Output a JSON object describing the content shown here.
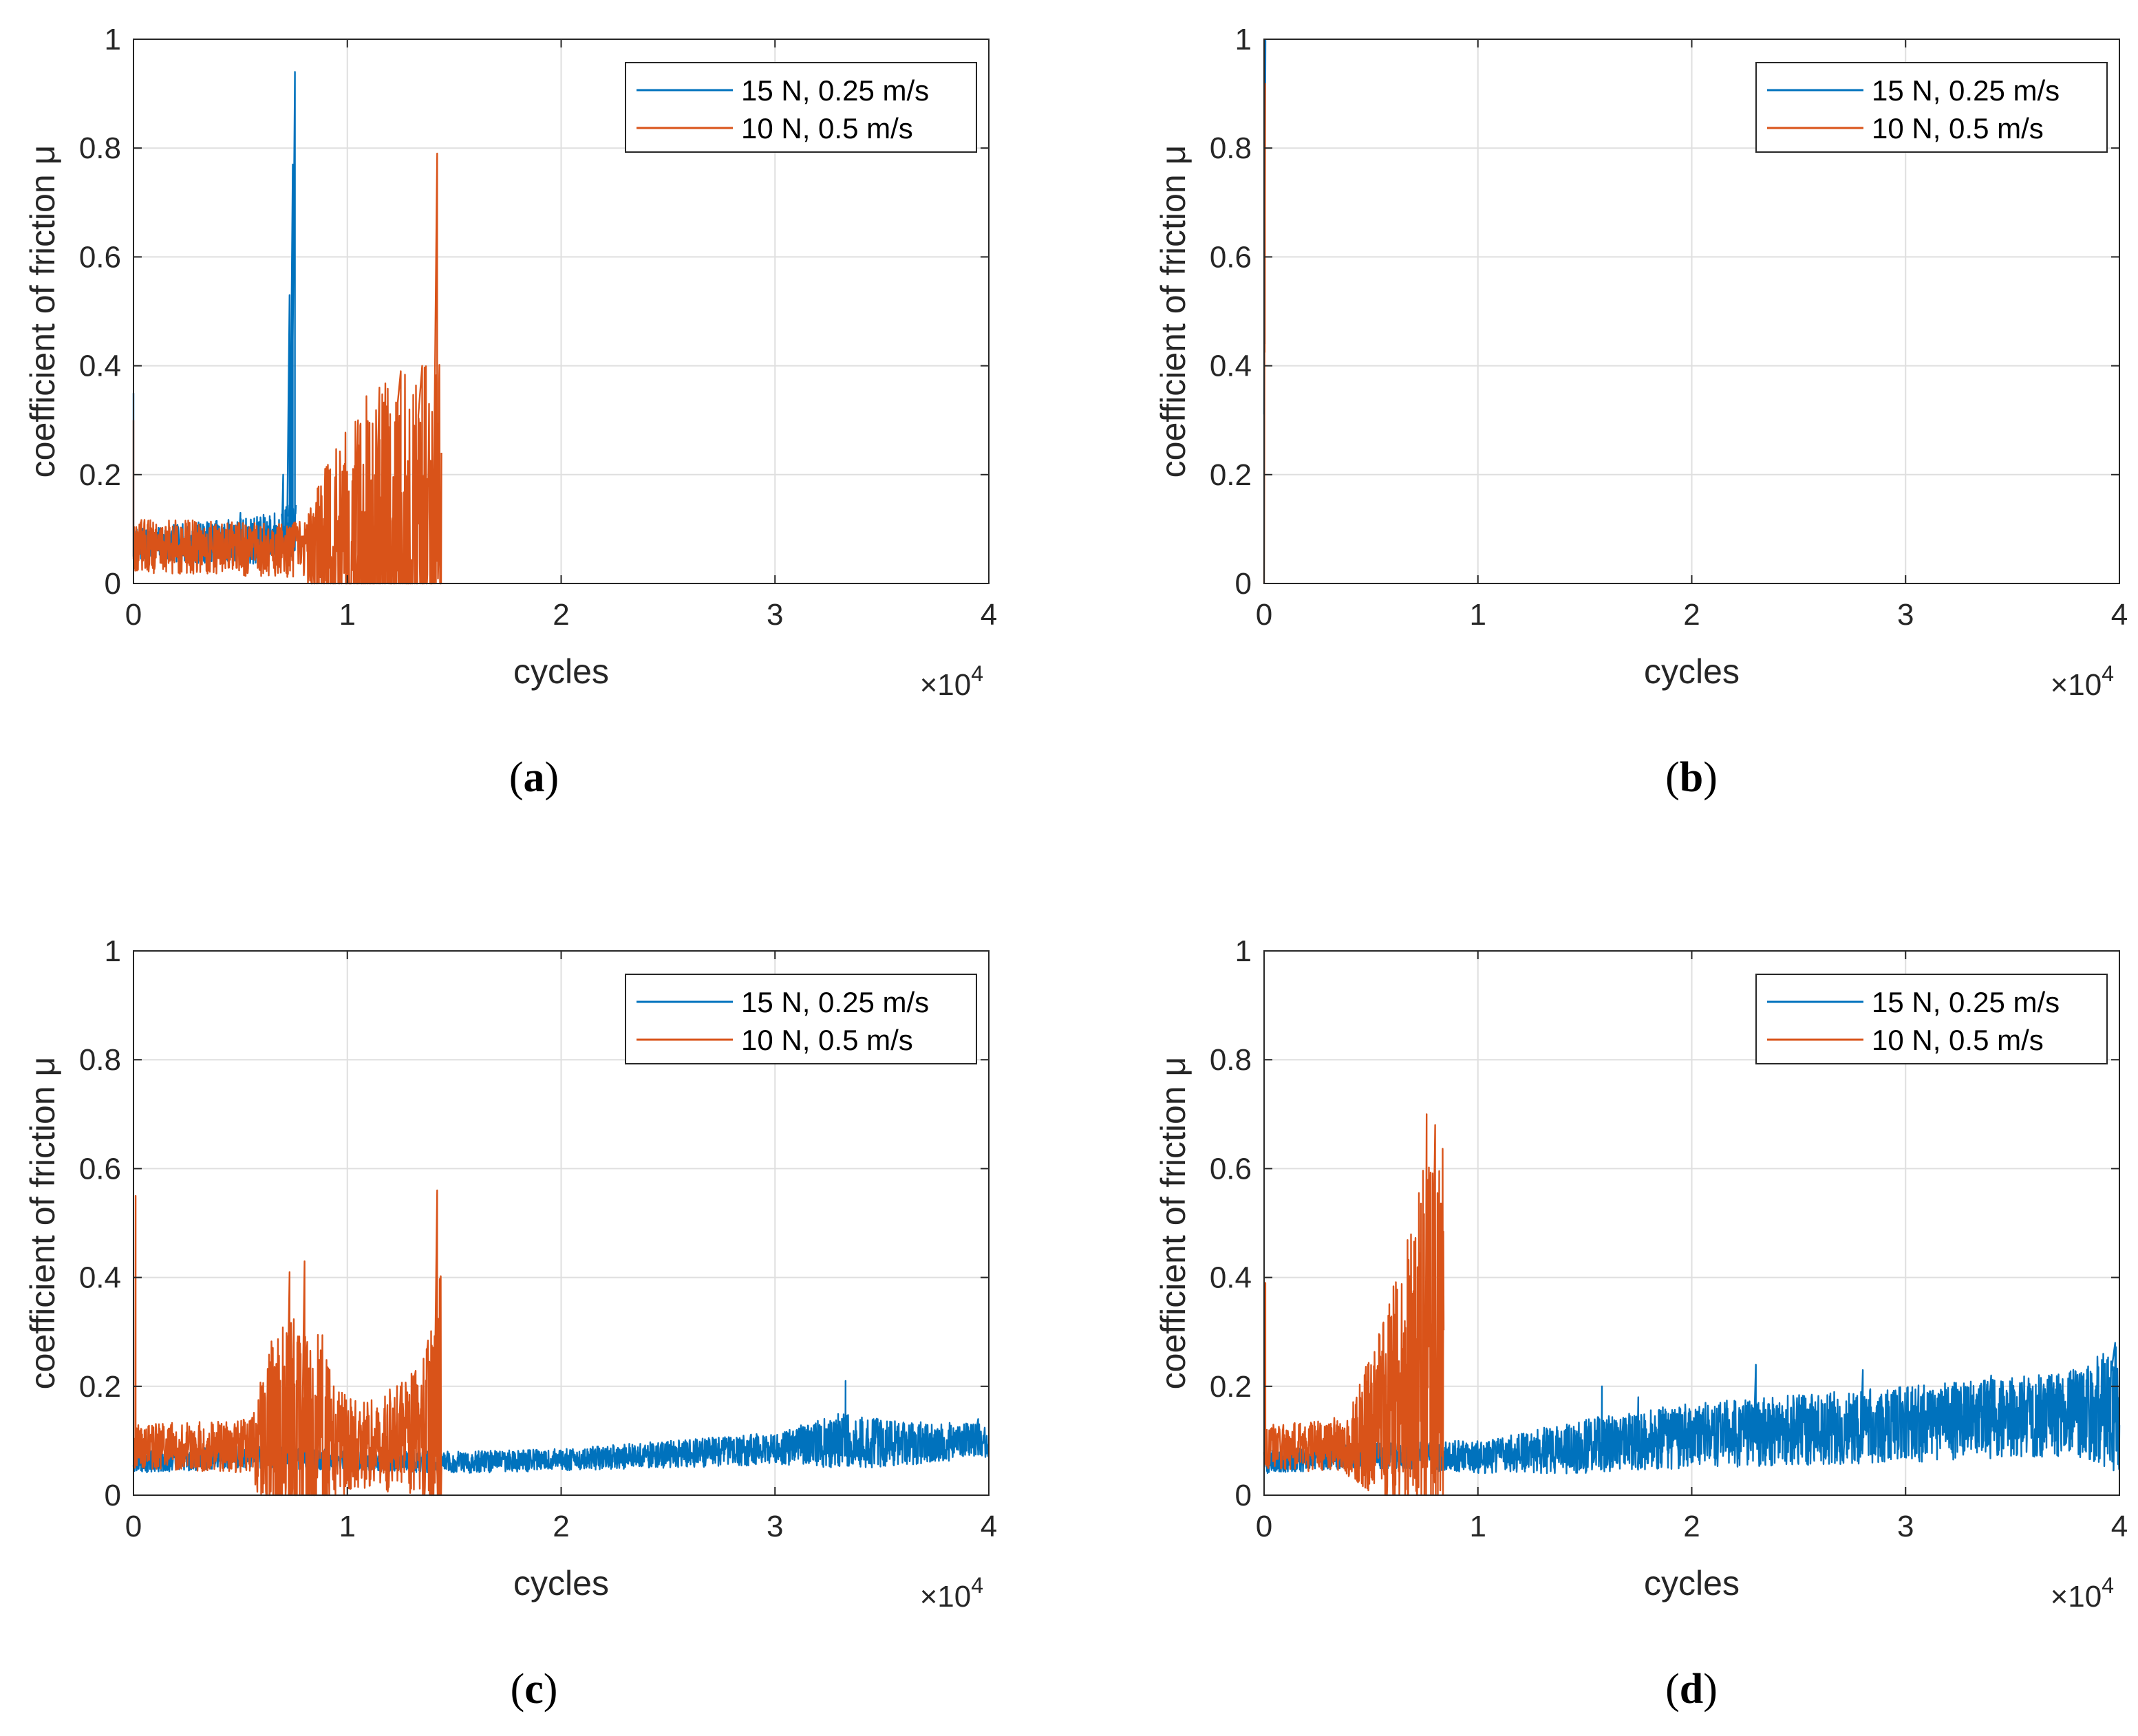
{
  "colors": {
    "series_blue": "#0072BD",
    "series_orange": "#D95319",
    "grid": "#DFDFDF",
    "axis": "#262626"
  },
  "chart_data": [
    {
      "panel": "(a)",
      "panel_letter": "a",
      "type": "line",
      "xlabel": "cycles",
      "ylabel": "coefficient of friction μ",
      "x_multiplier": "×10",
      "x_multiplier_exp": "4",
      "xlim": [
        0,
        40000
      ],
      "ylim": [
        0,
        1
      ],
      "xticks": [
        0,
        10000,
        20000,
        30000,
        40000
      ],
      "xtick_labels": [
        "0",
        "1",
        "2",
        "3",
        "4"
      ],
      "yticks": [
        0,
        0.2,
        0.4,
        0.6,
        0.8,
        1
      ],
      "ytick_labels": [
        "0",
        "0.2",
        "0.4",
        "0.6",
        "0.8",
        "1"
      ],
      "grid": true,
      "legend_position": "top-right",
      "series": [
        {
          "name": "15 N, 0.25 m/s",
          "color": "#0072BD",
          "profile": {
            "end": 7600,
            "base": [
              [
                0,
                0.07
              ],
              [
                3000,
                0.075
              ],
              [
                6000,
                0.08
              ],
              [
                7000,
                0.09
              ],
              [
                7600,
                0.1
              ]
            ],
            "noise": [
              [
                0,
                0.03
              ],
              [
                7600,
                0.05
              ]
            ],
            "spikes": [
              [
                0,
                0.35
              ],
              [
                5000,
                0.13
              ],
              [
                7000,
                0.2
              ],
              [
                7300,
                0.53
              ],
              [
                7450,
                0.77
              ],
              [
                7550,
                0.94
              ]
            ]
          }
        },
        {
          "name": "10 N, 0.5 m/s",
          "color": "#D95319",
          "profile": {
            "end": 14400,
            "base": [
              [
                0,
                0.07
              ],
              [
                7000,
                0.06
              ],
              [
                9000,
                0.07
              ],
              [
                14400,
                0.08
              ]
            ],
            "noise": [
              [
                0,
                0.05
              ],
              [
                8000,
                0.05
              ],
              [
                9000,
                0.15
              ],
              [
                11000,
                0.28
              ],
              [
                14400,
                0.34
              ]
            ],
            "spikes": [
              [
                0,
                0.3
              ],
              [
                9200,
                0.21
              ],
              [
                10500,
                0.3
              ],
              [
                11500,
                0.36
              ],
              [
                12500,
                0.39
              ],
              [
                13500,
                0.4
              ],
              [
                14200,
                0.79
              ]
            ]
          }
        }
      ]
    },
    {
      "panel": "(b)",
      "panel_letter": "b",
      "type": "line",
      "xlabel": "cycles",
      "ylabel": "coefficient of friction μ",
      "x_multiplier": "×10",
      "x_multiplier_exp": "4",
      "xlim": [
        0,
        40000
      ],
      "ylim": [
        0,
        1
      ],
      "xticks": [
        0,
        10000,
        20000,
        30000,
        40000
      ],
      "xtick_labels": [
        "0",
        "1",
        "2",
        "3",
        "4"
      ],
      "yticks": [
        0,
        0.2,
        0.4,
        0.6,
        0.8,
        1
      ],
      "ytick_labels": [
        "0",
        "0.2",
        "0.4",
        "0.6",
        "0.8",
        "1"
      ],
      "grid": true,
      "legend_position": "top-right",
      "series": [
        {
          "name": "15 N, 0.25 m/s",
          "color": "#0072BD",
          "profile": {
            "end": 60,
            "base": [
              [
                0,
                0.4
              ],
              [
                60,
                0.92
              ]
            ],
            "noise": [
              [
                0,
                0.2
              ],
              [
                60,
                0.3
              ]
            ],
            "spikes": [
              [
                30,
                0.91
              ]
            ]
          }
        },
        {
          "name": "10 N, 0.5 m/s",
          "color": "#D95319",
          "profile": {
            "end": 50,
            "base": [
              [
                0,
                0.02
              ],
              [
                50,
                0.85
              ]
            ],
            "noise": [
              [
                0,
                0.2
              ],
              [
                50,
                0.3
              ]
            ],
            "spikes": [
              [
                40,
                0.85
              ]
            ]
          }
        }
      ]
    },
    {
      "panel": "(c)",
      "panel_letter": "c",
      "type": "line",
      "xlabel": "cycles",
      "ylabel": "coefficient of friction μ",
      "x_multiplier": "×10",
      "x_multiplier_exp": "4",
      "xlim": [
        0,
        40000
      ],
      "ylim": [
        0,
        1
      ],
      "xticks": [
        0,
        10000,
        20000,
        30000,
        40000
      ],
      "xtick_labels": [
        "0",
        "1",
        "2",
        "3",
        "4"
      ],
      "yticks": [
        0,
        0.2,
        0.4,
        0.6,
        0.8,
        1
      ],
      "ytick_labels": [
        "0",
        "0.2",
        "0.4",
        "0.6",
        "0.8",
        "1"
      ],
      "grid": true,
      "legend_position": "top-right",
      "series": [
        {
          "name": "15 N, 0.25 m/s",
          "color": "#0072BD",
          "profile": {
            "end": 40000,
            "base": [
              [
                0,
                0.06
              ],
              [
                5000,
                0.07
              ],
              [
                10000,
                0.065
              ],
              [
                15000,
                0.06
              ],
              [
                20000,
                0.065
              ],
              [
                25000,
                0.075
              ],
              [
                30000,
                0.085
              ],
              [
                33000,
                0.1
              ],
              [
                35000,
                0.095
              ],
              [
                40000,
                0.1
              ]
            ],
            "noise": [
              [
                0,
                0.02
              ],
              [
                20000,
                0.02
              ],
              [
                30000,
                0.03
              ],
              [
                33000,
                0.05
              ],
              [
                40000,
                0.03
              ]
            ],
            "spikes": [
              [
                33300,
                0.21
              ],
              [
                39500,
                0.14
              ]
            ]
          }
        },
        {
          "name": "10 N, 0.5 m/s",
          "color": "#D95319",
          "profile": {
            "end": 14400,
            "base": [
              [
                0,
                0.09
              ],
              [
                5000,
                0.09
              ],
              [
                7000,
                0.1
              ],
              [
                8500,
                0.1
              ],
              [
                10000,
                0.09
              ],
              [
                12000,
                0.1
              ],
              [
                14400,
                0.13
              ]
            ],
            "noise": [
              [
                0,
                0.04
              ],
              [
                5500,
                0.05
              ],
              [
                6500,
                0.2
              ],
              [
                8500,
                0.25
              ],
              [
                9500,
                0.1
              ],
              [
                11000,
                0.08
              ],
              [
                13500,
                0.12
              ],
              [
                14400,
                0.3
              ]
            ],
            "spikes": [
              [
                100,
                0.55
              ],
              [
                6100,
                0.18
              ],
              [
                7300,
                0.41
              ],
              [
                8000,
                0.43
              ],
              [
                12500,
                0.2
              ],
              [
                14200,
                0.56
              ]
            ]
          }
        }
      ]
    },
    {
      "panel": "(d)",
      "panel_letter": "d",
      "type": "line",
      "xlabel": "cycles",
      "ylabel": "coefficient of friction μ",
      "x_multiplier": "×10",
      "x_multiplier_exp": "4",
      "xlim": [
        0,
        40000
      ],
      "ylim": [
        0,
        1
      ],
      "xticks": [
        0,
        10000,
        20000,
        30000,
        40000
      ],
      "xtick_labels": [
        "0",
        "1",
        "2",
        "3",
        "4"
      ],
      "yticks": [
        0,
        0.2,
        0.4,
        0.6,
        0.8,
        1
      ],
      "ytick_labels": [
        "0",
        "0.2",
        "0.4",
        "0.6",
        "0.8",
        "1"
      ],
      "grid": true,
      "legend_position": "top-right",
      "series": [
        {
          "name": "15 N, 0.25 m/s",
          "color": "#0072BD",
          "profile": {
            "end": 40000,
            "base": [
              [
                0,
                0.06
              ],
              [
                5000,
                0.075
              ],
              [
                10000,
                0.07
              ],
              [
                15000,
                0.09
              ],
              [
                20000,
                0.11
              ],
              [
                25000,
                0.12
              ],
              [
                30000,
                0.13
              ],
              [
                35000,
                0.14
              ],
              [
                40000,
                0.16
              ]
            ],
            "noise": [
              [
                0,
                0.02
              ],
              [
                10000,
                0.03
              ],
              [
                15000,
                0.05
              ],
              [
                20000,
                0.06
              ],
              [
                30000,
                0.07
              ],
              [
                38000,
                0.08
              ],
              [
                40000,
                0.12
              ]
            ],
            "spikes": [
              [
                15800,
                0.2
              ],
              [
                17500,
                0.18
              ],
              [
                23000,
                0.24
              ],
              [
                28000,
                0.23
              ],
              [
                34000,
                0.22
              ],
              [
                39800,
                0.28
              ]
            ]
          }
        },
        {
          "name": "10 N, 0.5 m/s",
          "color": "#D95319",
          "profile": {
            "end": 8400,
            "base": [
              [
                0,
                0.09
              ],
              [
                3000,
                0.09
              ],
              [
                4000,
                0.1
              ],
              [
                5500,
                0.14
              ],
              [
                6500,
                0.2
              ],
              [
                7500,
                0.27
              ],
              [
                8400,
                0.3
              ]
            ],
            "noise": [
              [
                0,
                0.04
              ],
              [
                3500,
                0.05
              ],
              [
                4500,
                0.1
              ],
              [
                5500,
                0.17
              ],
              [
                6500,
                0.25
              ],
              [
                7500,
                0.35
              ],
              [
                8400,
                0.38
              ]
            ],
            "spikes": [
              [
                60,
                0.39
              ],
              [
                7600,
                0.7
              ],
              [
                8000,
                0.68
              ]
            ]
          }
        }
      ]
    }
  ]
}
